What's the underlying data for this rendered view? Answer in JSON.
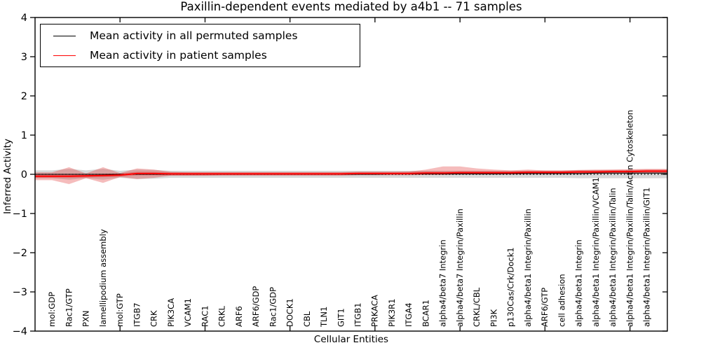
{
  "figure": {
    "title": "Paxillin-dependent events mediated by a4b1 -- 71 samples",
    "legend": [
      {
        "label": "Mean activity in all permuted samples",
        "color": "#000000"
      },
      {
        "label": "Mean activity in patient samples",
        "color": "#ff0000"
      }
    ]
  },
  "chart_data": {
    "type": "line",
    "title": "Paxillin-dependent events mediated by a4b1 -- 71 samples",
    "xlabel": "Cellular Entities",
    "ylabel": "Inferred Activity",
    "ylim": [
      -4,
      4
    ],
    "xlim": [
      0,
      37.2
    ],
    "yticks": [
      -4,
      -3,
      -2,
      -1,
      0,
      1,
      2,
      3,
      4
    ],
    "xticks": [
      5,
      10,
      15,
      20,
      25,
      30,
      35
    ],
    "grid": false,
    "legend_position": "upper left",
    "categories": [
      "mol:GDP",
      "Rac1/GTP",
      "PXN",
      "lamellipodium assembly",
      "mol:GTP",
      "ITGB7",
      "CRK",
      "PIK3CA",
      "VCAM1",
      "RAC1",
      "CRKL",
      "ARF6",
      "ARF6/GDP",
      "Rac1/GDP",
      "DOCK1",
      "CBL",
      "TLN1",
      "GIT1",
      "ITGB1",
      "PRKACA",
      "PIK3R1",
      "ITGA4",
      "BCAR1",
      "alpha4/beta7 Integrin",
      "alpha4/beta7 Integrin/Paxillin",
      "CRKL/CBL",
      "PI3K",
      "p130Cas/Crk/Dock1",
      "alpha4/beta1 Integrin/Paxillin",
      "ARF6/GTP",
      "cell adhesion",
      "alpha4/beta1 Integrin",
      "alpha4/beta1 Integrin/Paxillin/VCAM1",
      "alpha4/beta1 Integrin/Paxillin/Talin",
      "alpha4/beta1 Integrin/Paxillin/Talin/Actin Cytoskeleton",
      "alpha4/beta1 Integrin/Paxillin/GIT1"
    ],
    "series": [
      {
        "key": "permuted-mean",
        "name": "Mean activity in all permuted samples",
        "color": "#000000",
        "width": 1.1,
        "values": [
          0,
          0,
          0,
          0,
          0,
          0,
          0,
          0,
          0,
          0,
          0,
          0,
          0,
          0,
          0,
          0,
          0,
          0,
          0,
          0,
          0.01,
          0.01,
          0.01,
          0.01,
          0.01,
          0.01,
          0.01,
          0.02,
          0.02,
          0.02,
          0.02,
          0.02,
          0.03,
          0.03,
          0.03,
          0.03
        ]
      },
      {
        "key": "patient-mean",
        "name": "Mean activity in patient samples",
        "color": "#ff0000",
        "width": 2.0,
        "values": [
          -0.05,
          -0.05,
          -0.04,
          -0.03,
          -0.02,
          0.02,
          0.02,
          0.01,
          0.01,
          0.01,
          0.01,
          0.01,
          0.01,
          0.01,
          0.01,
          0.01,
          0.01,
          0.01,
          0.02,
          0.02,
          0.02,
          0.02,
          0.03,
          0.03,
          0.04,
          0.04,
          0.04,
          0.04,
          0.05,
          0.05,
          0.05,
          0.06,
          0.06,
          0.07,
          0.07,
          0.08
        ]
      }
    ],
    "reference_line": {
      "y": 0,
      "style": "dotted",
      "color": "#000000"
    },
    "bands": [
      {
        "name": "permuted-std",
        "color": "#999999",
        "opacity": 0.38,
        "halfwidths": [
          0.1,
          0.14,
          0.1,
          0.14,
          0.09,
          0.12,
          0.11,
          0.09,
          0.09,
          0.09,
          0.09,
          0.09,
          0.09,
          0.09,
          0.09,
          0.09,
          0.09,
          0.09,
          0.09,
          0.09,
          0.09,
          0.09,
          0.09,
          0.09,
          0.09,
          0.09,
          0.09,
          0.09,
          0.09,
          0.09,
          0.09,
          0.1,
          0.1,
          0.1,
          0.1,
          0.1
        ]
      },
      {
        "name": "patient-std-outer",
        "color": "#dd2222",
        "opacity": 0.3,
        "upper": [
          0.05,
          0.18,
          0.02,
          0.18,
          0.03,
          0.15,
          0.12,
          0.06,
          0.05,
          0.05,
          0.05,
          0.05,
          0.05,
          0.05,
          0.05,
          0.05,
          0.05,
          0.05,
          0.06,
          0.06,
          0.06,
          0.07,
          0.12,
          0.2,
          0.2,
          0.15,
          0.12,
          0.1,
          0.12,
          0.1,
          0.1,
          0.11,
          0.12,
          0.12,
          0.13,
          0.14
        ],
        "lower": [
          -0.15,
          -0.25,
          -0.1,
          -0.22,
          -0.07,
          -0.12,
          -0.09,
          -0.03,
          -0.03,
          -0.03,
          -0.02,
          -0.02,
          -0.02,
          -0.02,
          -0.02,
          -0.02,
          -0.02,
          -0.02,
          -0.01,
          -0.01,
          -0.01,
          -0.01,
          -0.01,
          -0.01,
          0,
          0,
          0,
          0,
          0.01,
          0.01,
          0.01,
          0.01,
          0.02,
          0.02,
          0.02,
          0.03
        ]
      },
      {
        "name": "patient-std-inner",
        "color": "#dd2222",
        "opacity": 0.3,
        "center_series": 1,
        "halfwidth": 0.045
      }
    ]
  }
}
